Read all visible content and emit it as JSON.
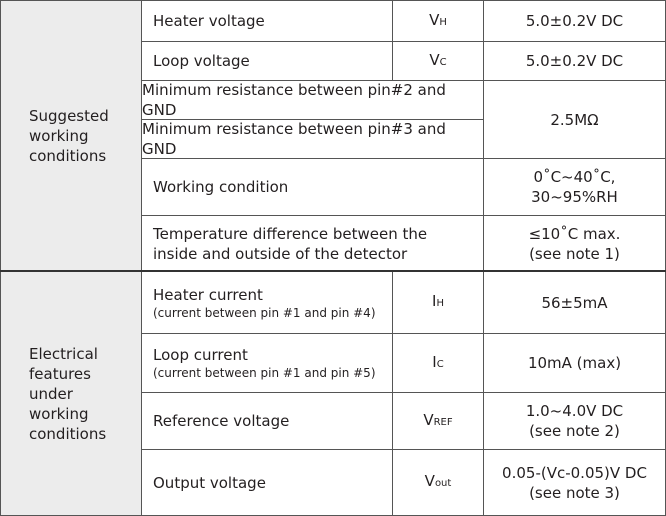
{
  "groups": [
    {
      "label": [
        "Suggested",
        "working",
        "conditions"
      ],
      "rows": [
        {
          "parameter": "Heater voltage",
          "symbol": {
            "main": "V",
            "sub": "H"
          },
          "value": [
            "5.0±0.2V DC"
          ]
        },
        {
          "parameter": "Loop voltage",
          "symbol": {
            "main": "V",
            "sub": "C"
          },
          "value": [
            "5.0±0.2V DC"
          ]
        },
        {
          "parameter": "Minimum resistance between pin#2  and GND",
          "value": [
            "2.5MΩ"
          ]
        },
        {
          "parameter": "Minimum resistance between pin#3  and GND"
        },
        {
          "parameter": "Working condition",
          "value": [
            "0˚C~40˚C,",
            "30~95%RH"
          ]
        },
        {
          "parameter_lines": [
            "Temperature difference between the",
            "inside  and outside of the detector"
          ],
          "value": [
            "≤10˚C max.",
            "(see note 1)"
          ]
        }
      ]
    },
    {
      "label": [
        "Electrical",
        "features",
        "under",
        "working",
        "conditions"
      ],
      "rows": [
        {
          "parameter": "Heater current",
          "note": "(current between pin #1 and pin #4)",
          "symbol": {
            "main": "I",
            "sub": "H"
          },
          "value": [
            "56±5mA"
          ]
        },
        {
          "parameter": "Loop current",
          "note": "(current between pin #1 and pin #5)",
          "symbol": {
            "main": "I",
            "sub": "C"
          },
          "value": [
            "10mA (max)"
          ]
        },
        {
          "parameter": "Reference voltage",
          "symbol": {
            "main": "V",
            "sub": "REF"
          },
          "value": [
            "1.0~4.0V DC",
            "(see note 2)"
          ]
        },
        {
          "parameter": "Output voltage",
          "symbol": {
            "main": "V",
            "sub": "out"
          },
          "value": [
            "0.05-(Vc-0.05)V DC",
            "(see note 3)"
          ]
        }
      ]
    }
  ]
}
